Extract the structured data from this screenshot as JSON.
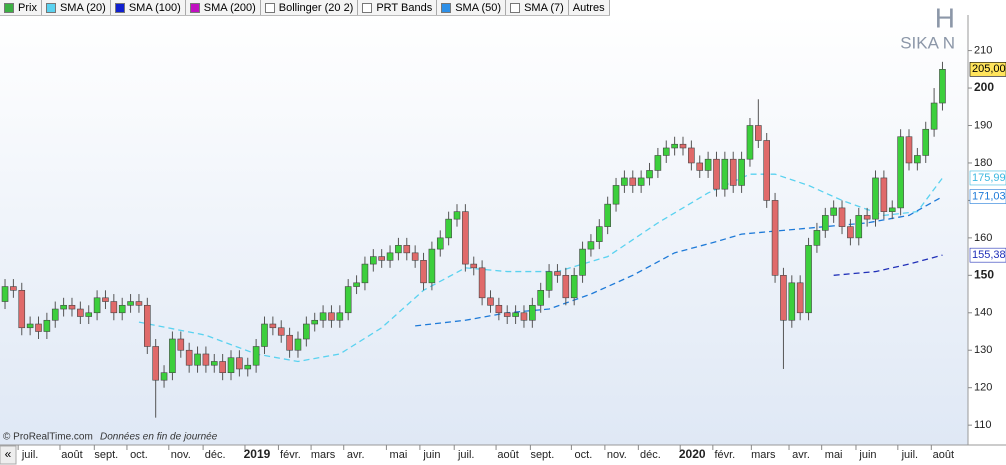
{
  "legend": [
    {
      "label": "Prix",
      "color": "#3cb043"
    },
    {
      "label": "SMA (20)",
      "color": "#5ad2f0"
    },
    {
      "label": "SMA (100)",
      "color": "#1020d0"
    },
    {
      "label": "SMA (200)",
      "color": "#c010c0"
    },
    {
      "label": "Bollinger (20 2)",
      "color": "#ffffff"
    },
    {
      "label": "PRT Bands",
      "color": "#ffffff"
    },
    {
      "label": "SMA (50)",
      "color": "#2e90e8"
    },
    {
      "label": "SMA (7)",
      "color": "#ffffff"
    },
    {
      "label": "Autres",
      "color": null
    }
  ],
  "chart_data": {
    "type": "candlestick",
    "title": "H",
    "subtitle": "SIKA N",
    "source": "© ProRealTime.com",
    "note": "Données en fin de journée",
    "nav_button": "«",
    "up_color": "#3ccf3c",
    "down_color": "#e06a6a",
    "open": [
      143,
      147,
      146,
      136,
      137,
      135,
      138,
      141,
      142,
      141,
      139,
      140,
      144,
      143,
      140,
      142,
      143,
      142,
      131,
      122,
      124,
      133,
      130,
      126,
      129,
      126,
      127,
      124,
      128,
      125,
      126,
      131,
      137,
      136,
      134,
      130,
      133,
      137,
      138,
      140,
      138,
      140,
      147,
      148,
      153,
      155,
      154,
      156,
      158,
      156,
      154,
      148,
      157,
      160,
      165,
      167,
      153,
      152,
      144,
      142,
      140,
      139,
      140,
      138,
      142,
      146,
      151,
      150,
      144,
      150,
      157,
      159,
      163,
      169,
      174,
      176,
      174,
      176,
      178,
      182,
      184,
      185,
      184,
      180,
      178,
      181,
      173,
      181,
      174,
      181,
      190,
      186,
      170,
      150,
      138,
      148,
      140,
      158,
      162,
      166,
      168,
      163,
      160,
      166,
      165,
      176,
      167,
      168,
      187,
      180,
      182,
      189,
      196
    ],
    "high": [
      149,
      149,
      148,
      139,
      139,
      140,
      143,
      144,
      144,
      143,
      142,
      146,
      146,
      145,
      144,
      145,
      145,
      144,
      133,
      126,
      135,
      135,
      132,
      131,
      131,
      129,
      129,
      130,
      130,
      128,
      133,
      139,
      139,
      138,
      136,
      135,
      139,
      140,
      142,
      142,
      142,
      149,
      150,
      155,
      157,
      157,
      158,
      160,
      160,
      158,
      156,
      159,
      162,
      167,
      169,
      169,
      155,
      154,
      146,
      144,
      142,
      142,
      142,
      144,
      148,
      153,
      153,
      152,
      152,
      159,
      161,
      165,
      171,
      176,
      178,
      178,
      178,
      180,
      184,
      186,
      187,
      187,
      186,
      182,
      183,
      183,
      183,
      183,
      183,
      192,
      197,
      188,
      172,
      152,
      150,
      150,
      160,
      164,
      168,
      170,
      170,
      165,
      168,
      168,
      178,
      178,
      170,
      189,
      189,
      184,
      191,
      200,
      207
    ],
    "low": [
      141,
      144,
      134,
      134,
      133,
      133,
      136,
      139,
      139,
      137,
      137,
      138,
      141,
      138,
      138,
      140,
      140,
      129,
      112,
      120,
      122,
      128,
      124,
      124,
      124,
      124,
      122,
      122,
      123,
      123,
      124,
      129,
      134,
      132,
      128,
      128,
      131,
      135,
      136,
      136,
      136,
      138,
      145,
      146,
      151,
      152,
      152,
      154,
      154,
      152,
      146,
      146,
      155,
      158,
      163,
      151,
      150,
      142,
      140,
      138,
      137,
      137,
      136,
      136,
      140,
      144,
      148,
      142,
      142,
      148,
      155,
      157,
      161,
      167,
      172,
      172,
      172,
      174,
      176,
      180,
      182,
      182,
      178,
      176,
      176,
      171,
      171,
      172,
      172,
      179,
      184,
      168,
      148,
      125,
      136,
      138,
      138,
      156,
      160,
      164,
      161,
      158,
      158,
      163,
      163,
      165,
      165,
      166,
      178,
      178,
      180,
      187,
      194
    ],
    "close": [
      147,
      146,
      136,
      137,
      135,
      138,
      141,
      142,
      141,
      139,
      140,
      144,
      143,
      140,
      142,
      143,
      142,
      131,
      122,
      124,
      133,
      130,
      126,
      129,
      126,
      127,
      124,
      128,
      125,
      126,
      131,
      137,
      136,
      134,
      130,
      133,
      137,
      138,
      140,
      138,
      140,
      147,
      148,
      153,
      155,
      154,
      156,
      158,
      156,
      154,
      148,
      157,
      160,
      165,
      167,
      153,
      152,
      144,
      142,
      140,
      139,
      140,
      138,
      142,
      146,
      151,
      150,
      144,
      150,
      157,
      159,
      163,
      169,
      174,
      176,
      174,
      176,
      178,
      182,
      184,
      185,
      184,
      180,
      178,
      181,
      173,
      181,
      174,
      181,
      190,
      186,
      170,
      150,
      138,
      148,
      140,
      158,
      162,
      166,
      168,
      163,
      160,
      166,
      165,
      176,
      167,
      168,
      187,
      180,
      182,
      189,
      196,
      205
    ],
    "series": [
      {
        "color": "#5ad2f0",
        "x": [
          16,
          24,
          30,
          35,
          40,
          45,
          50,
          55,
          60,
          66,
          72,
          78,
          84,
          89,
          92,
          96,
          100,
          105,
          109,
          112
        ],
        "values": [
          137.5,
          134,
          129,
          127,
          129,
          136,
          146,
          152,
          151,
          151,
          155,
          164,
          172,
          177,
          177,
          174,
          170,
          166,
          167,
          176
        ]
      },
      {
        "color": "#1e7ad8",
        "x": [
          49,
          55,
          60,
          65,
          70,
          75,
          80,
          85,
          88,
          93,
          98,
          103,
          108,
          112
        ],
        "values": [
          136.5,
          138,
          140,
          141,
          145,
          150,
          156,
          159,
          161,
          162,
          163,
          164,
          166,
          171
        ]
      },
      {
        "color": "#2030b8",
        "x": [
          99,
          104,
          108,
          112
        ],
        "values": [
          150,
          151,
          153,
          155.4
        ]
      }
    ],
    "price_labels": [
      {
        "value": 205,
        "label": "205,00",
        "color": "#000000",
        "background": "#ffe45c"
      },
      {
        "value": 175.99,
        "label": "175,99",
        "color": "#3cb8e0",
        "background": "#ffffff"
      },
      {
        "value": 171.03,
        "label": "171,03",
        "color": "#1e7ad8",
        "background": "#ffffff"
      },
      {
        "value": 155.38,
        "label": "155,38",
        "color": "#2030b8",
        "background": "#ffffff"
      }
    ],
    "xlim": [
      -0.6,
      115.05
    ],
    "xticks": [
      {
        "value": 3,
        "label": "juil."
      },
      {
        "value": 8,
        "label": "août"
      },
      {
        "value": 12.1,
        "label": "sept."
      },
      {
        "value": 16,
        "label": "oct."
      },
      {
        "value": 21,
        "label": "nov."
      },
      {
        "value": 25.1,
        "label": "déc."
      },
      {
        "value": 30.1,
        "label": "2019"
      },
      {
        "value": 34.1,
        "label": "févr."
      },
      {
        "value": 38,
        "label": "mars"
      },
      {
        "value": 41.9,
        "label": "avr."
      },
      {
        "value": 47,
        "label": "mai"
      },
      {
        "value": 51,
        "label": "juin"
      },
      {
        "value": 55.1,
        "label": "juil."
      },
      {
        "value": 60.1,
        "label": "août"
      },
      {
        "value": 64.2,
        "label": "sept."
      },
      {
        "value": 69.1,
        "label": "oct."
      },
      {
        "value": 73.1,
        "label": "nov."
      },
      {
        "value": 77.1,
        "label": "déc."
      },
      {
        "value": 82.1,
        "label": "2020"
      },
      {
        "value": 86,
        "label": "févr."
      },
      {
        "value": 90.6,
        "label": "mars"
      },
      {
        "value": 95.1,
        "label": "avr."
      },
      {
        "value": 99,
        "label": "mai"
      },
      {
        "value": 103.1,
        "label": "juin"
      },
      {
        "value": 108.1,
        "label": "juil."
      },
      {
        "value": 112.1,
        "label": "août"
      }
    ],
    "ylim": [
      104.7,
      219.5
    ],
    "yticks": [
      110,
      120,
      130,
      140,
      150,
      160,
      170,
      180,
      190,
      200,
      210
    ]
  }
}
